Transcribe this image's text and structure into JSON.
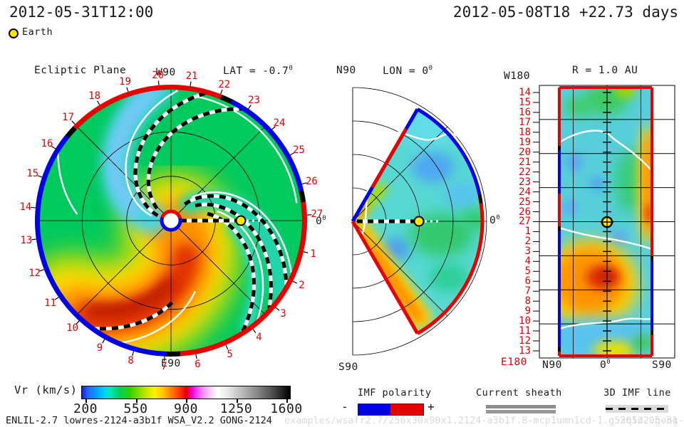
{
  "header": {
    "left_time": "2012-05-31T12:00",
    "right_time": "2012-05-08T18 +22.73 days",
    "earth": "Earth"
  },
  "ecliptic": {
    "title": "Ecliptic Plane",
    "lat_base": "LAT = -0.7",
    "deg": "0",
    "w_label": "W90",
    "e_label": "E90",
    "zero_base": "0",
    "days": [
      "1",
      "2",
      "3",
      "4",
      "5",
      "6",
      "7",
      "8",
      "9",
      "10",
      "11",
      "12",
      "13",
      "14",
      "15",
      "16",
      "17",
      "18",
      "19",
      "20",
      "21",
      "22",
      "23",
      "24",
      "25",
      "26",
      "27"
    ]
  },
  "meridional": {
    "n_label": "N90",
    "lon_base": "LON = 0",
    "deg": "0",
    "s_label": "S90",
    "zero_base": "0"
  },
  "radial": {
    "title": "R = 1.0 AU",
    "w_label": "W180",
    "e_label": "E180",
    "n_label": "N90",
    "zero_base": "0",
    "deg": "0",
    "s_label": "S90",
    "days": [
      "14",
      "15",
      "16",
      "17",
      "18",
      "19",
      "20",
      "21",
      "22",
      "23",
      "24",
      "25",
      "26",
      "27",
      "1",
      "2",
      "3",
      "4",
      "5",
      "6",
      "7",
      "8",
      "9",
      "10",
      "11",
      "12",
      "13"
    ]
  },
  "colorbar": {
    "label": "Vr (km/s)",
    "ticks": [
      "200",
      "550",
      "900",
      "1250",
      "1600"
    ]
  },
  "legends": {
    "imf_label": "IMF polarity",
    "minus": "-",
    "plus": "+",
    "sheath_label": "Current sheath",
    "imf3d_label": "3D IMF line"
  },
  "footer": {
    "model": "ENLIL-2.7 lowres-2124-a3b1f WSA_V2.2 GONG-2124",
    "watermark": "examples/wsafr2.7/256x30x90x1.2124-a3b1f.8-mcp1umn1cd-1.g53q5d2.gong-2012:04:27T04:38:00T00",
    "watermark_date": "2012-05-31"
  },
  "colors": {
    "polarity_negative": "#0000e8",
    "polarity_positive": "#e80000",
    "earth": "#ffe800",
    "day_number": "#e60000",
    "sheath_gray": "#8c8c8c",
    "sheath_gray2": "#969696"
  },
  "chart_data": {
    "type": "heatmap",
    "title": "WSA-ENLIL solar wind radial velocity (Vr)",
    "run_date": "2012-05-31T12:00",
    "start_reference": "2012-05-08T18",
    "elapsed_days": 22.73,
    "colorbar": {
      "label": "Vr (km/s)",
      "min": 200,
      "max": 1600,
      "ticks": [
        200,
        550,
        900,
        1250,
        1600
      ]
    },
    "panels": [
      {
        "name": "Ecliptic Plane",
        "projection": "polar",
        "lat_deg": -0.7,
        "boundary_day_marks": [
          1,
          2,
          3,
          4,
          5,
          6,
          7,
          8,
          9,
          10,
          11,
          12,
          13,
          14,
          15,
          16,
          17,
          18,
          19,
          20,
          21,
          22,
          23,
          24,
          25,
          26,
          27
        ],
        "axis_labels": [
          "W90",
          "E90",
          "0deg"
        ]
      },
      {
        "name": "Meridional plane",
        "lon_deg": 0,
        "axis_labels": [
          "N90",
          "S90",
          "0deg"
        ]
      },
      {
        "name": "Constant radius map",
        "r_au": 1.0,
        "x_axis_labels": [
          "N90",
          "0deg",
          "S90"
        ],
        "row_day_marks": [
          14,
          15,
          16,
          17,
          18,
          19,
          20,
          21,
          22,
          23,
          24,
          25,
          26,
          27,
          1,
          2,
          3,
          4,
          5,
          6,
          7,
          8,
          9,
          10,
          11,
          12,
          13
        ],
        "corner_labels": [
          "W180",
          "E180"
        ]
      }
    ],
    "legend_entries": [
      "IMF polarity",
      "Current sheath",
      "3D IMF line"
    ],
    "overlay_marker": "Earth"
  }
}
